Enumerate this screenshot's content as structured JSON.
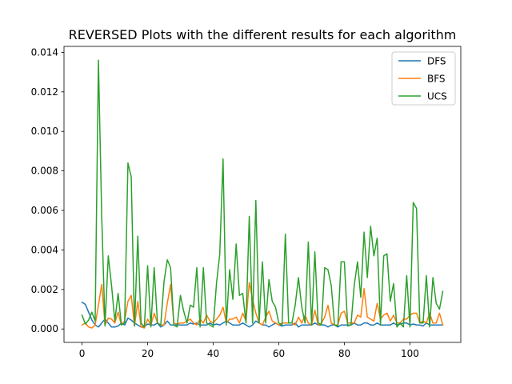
{
  "chart_data": {
    "type": "line",
    "title": "REVERSED Plots with the different results for each algorithm",
    "xlabel": "",
    "ylabel": "",
    "xlim": [
      -5.5,
      115.5
    ],
    "ylim": [
      -0.00068,
      0.0143
    ],
    "xticks": [
      0,
      20,
      40,
      60,
      80,
      100
    ],
    "yticks": [
      0.0,
      0.002,
      0.004,
      0.006,
      0.008,
      0.01,
      0.012,
      0.014
    ],
    "ytick_labels": [
      "0.000",
      "0.002",
      "0.004",
      "0.006",
      "0.008",
      "0.010",
      "0.012",
      "0.014"
    ],
    "legend_position": "top-right",
    "grid": false,
    "series": [
      {
        "name": "DFS",
        "color": "#1f77b4",
        "values": [
          0.00135,
          0.00125,
          0.00085,
          0.00045,
          0.0002,
          0.0001,
          0.0003,
          0.0005,
          0.0003,
          0.0001,
          0.0001,
          0.00015,
          0.0003,
          0.0002,
          0.00055,
          0.00045,
          0.0003,
          0.0002,
          0.0001,
          0.00012,
          0.00025,
          0.0002,
          0.0002,
          0.0003,
          0.0001,
          0.0002,
          0.0004,
          0.0002,
          0.0002,
          0.0002,
          0.0002,
          0.0002,
          0.0002,
          0.0003,
          0.00025,
          0.0003,
          0.0002,
          0.0002,
          0.0002,
          0.0003,
          0.0002,
          0.00025,
          0.0002,
          0.0003,
          0.0004,
          0.0003,
          0.0002,
          0.0002,
          0.0002,
          0.0003,
          0.0002,
          0.0001,
          0.0002,
          0.0004,
          0.0003,
          0.0002,
          0.0002,
          0.0001,
          0.0002,
          0.0003,
          0.0002,
          0.00015,
          0.0002,
          0.0002,
          0.0002,
          0.0003,
          0.0001,
          0.0002,
          0.0002,
          0.0002,
          0.0002,
          0.0003,
          0.0002,
          0.0002,
          0.0002,
          0.0001,
          0.0002,
          0.0002,
          0.0001,
          0.0002,
          0.0002,
          0.0002,
          0.0002,
          0.0003,
          0.0002,
          0.0002,
          0.0003,
          0.0003,
          0.0002,
          0.0002,
          0.0003,
          0.0002,
          0.0002,
          0.0002,
          0.0002,
          0.0003,
          0.0002,
          0.00025,
          0.0003,
          0.0003,
          0.0002,
          0.00025,
          0.0002,
          0.0002,
          0.00015,
          0.0003,
          0.0002,
          0.0002,
          0.0002,
          0.0002,
          0.0002
        ]
      },
      {
        "name": "BFS",
        "color": "#ff7f0e",
        "values": [
          0.0002,
          0.0003,
          0.0001,
          5e-05,
          0.0002,
          0.0012,
          0.00225,
          0.0002,
          0.00055,
          0.0005,
          0.0003,
          0.00085,
          0.0002,
          0.0004,
          0.0014,
          0.0017,
          0.00015,
          0.0014,
          0.0001,
          5e-05,
          0.0005,
          0.0002,
          0.0008,
          0.0003,
          0.0002,
          0.0002,
          0.0013,
          0.00225,
          0.0003,
          0.00025,
          0.0003,
          0.0003,
          0.0004,
          0.0005,
          0.0003,
          0.0002,
          0.0005,
          0.0003,
          0.0007,
          0.0004,
          0.0003,
          0.0005,
          0.0007,
          0.0011,
          0.0003,
          0.0005,
          0.0005,
          0.0006,
          0.0003,
          0.0008,
          0.0004,
          0.00235,
          0.0015,
          0.0008,
          0.0003,
          0.0002,
          0.0006,
          0.0009,
          0.0004,
          0.0003,
          0.0002,
          0.0003,
          0.0003,
          0.0003,
          0.0003,
          0.0002,
          0.0006,
          0.0003,
          0.0007,
          0.0003,
          0.0002,
          0.00095,
          0.0002,
          0.0003,
          0.0006,
          0.0012,
          0.0003,
          0.0002,
          0.0002,
          0.0008,
          0.0009,
          0.0003,
          0.0003,
          0.0003,
          0.0007,
          0.0006,
          0.00205,
          0.0006,
          0.0005,
          0.0004,
          0.0013,
          0.0005,
          0.0007,
          0.0008,
          0.0004,
          0.0007,
          0.0003,
          0.0003,
          0.0005,
          0.0005,
          0.0007,
          0.0008,
          0.0008,
          0.0003,
          0.0004,
          0.0003,
          0.0008,
          0.0003,
          0.0003,
          0.0008,
          0.0002
        ]
      },
      {
        "name": "UCS",
        "color": "#2ca02c",
        "values": [
          0.0007,
          0.00025,
          0.00045,
          0.00085,
          0.0004,
          0.0136,
          0.0057,
          0.00015,
          0.0037,
          0.0022,
          0.0004,
          0.0018,
          0.0002,
          0.0003,
          0.0084,
          0.0077,
          0.00015,
          0.0047,
          0.0003,
          0.0001,
          0.0032,
          0.0001,
          0.0031,
          0.0003,
          0.0002,
          0.0024,
          0.0035,
          0.0031,
          0.0002,
          0.0001,
          0.0017,
          0.0009,
          0.0003,
          0.0012,
          0.0011,
          0.0031,
          0.0001,
          0.0031,
          0.0003,
          0.0002,
          0.0001,
          0.0023,
          0.0038,
          0.0086,
          0.0002,
          0.003,
          0.0015,
          0.0043,
          0.0017,
          0.0018,
          0.0003,
          0.0057,
          0.0003,
          0.0065,
          0.0003,
          0.0034,
          0.0003,
          0.0025,
          0.0014,
          0.0011,
          0.0003,
          0.0002,
          0.0048,
          0.0003,
          0.0003,
          0.0012,
          0.0026,
          0.0011,
          0.0003,
          0.0044,
          0.0002,
          0.0039,
          0.0003,
          0.0002,
          0.0031,
          0.003,
          0.0022,
          0.0002,
          0.00015,
          0.0034,
          0.0034,
          0.00015,
          0.0002,
          0.0022,
          0.0034,
          0.0016,
          0.0049,
          0.0026,
          0.0052,
          0.0037,
          0.0046,
          0.0002,
          0.0037,
          0.0038,
          0.0014,
          0.0023,
          0.0001,
          0.0003,
          0.0001,
          0.0027,
          0.0001,
          0.0064,
          0.0061,
          0.0003,
          0.0003,
          0.0027,
          0.0001,
          0.0026,
          0.0013,
          0.001,
          0.0019
        ]
      }
    ]
  }
}
